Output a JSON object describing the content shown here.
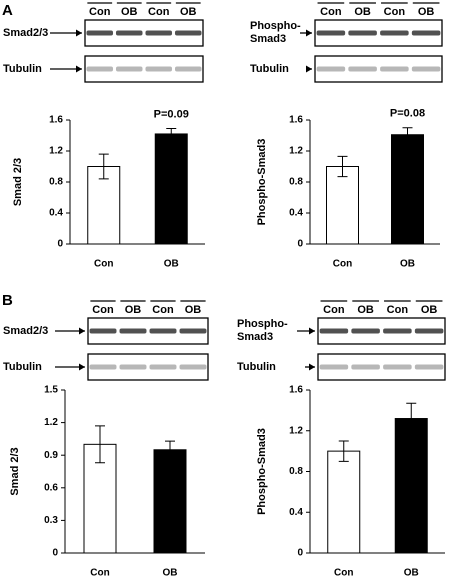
{
  "panels": [
    {
      "label": "A",
      "blots": [
        {
          "lanes": [
            "Con",
            "OB",
            "Con",
            "OB"
          ],
          "rows": [
            "Smad2/3",
            "Tubulin"
          ]
        },
        {
          "lanes": [
            "Con",
            "OB",
            "Con",
            "OB"
          ],
          "rows": [
            "Phospho-Smad3",
            "Tubulin"
          ]
        }
      ]
    },
    {
      "label": "B",
      "blots": [
        {
          "lanes": [
            "Con",
            "OB",
            "Con",
            "OB"
          ],
          "rows": [
            "Smad2/3",
            "Tubulin"
          ]
        },
        {
          "lanes": [
            "Con",
            "OB",
            "Con",
            "OB"
          ],
          "rows": [
            "Phospho-Smad3",
            "Tubulin"
          ]
        }
      ]
    }
  ],
  "chart_data": [
    {
      "type": "bar",
      "y_label": "Smad 2/3",
      "categories": [
        "Con",
        "OB"
      ],
      "values": [
        1.0,
        1.42
      ],
      "errors": [
        0.16,
        0.07
      ],
      "colors": [
        "#ffffff",
        "#000000"
      ],
      "annotation": "P=0.09",
      "ylim": [
        0,
        1.6
      ],
      "yticks": [
        0,
        0.4,
        0.8,
        1.2,
        1.6
      ]
    },
    {
      "type": "bar",
      "y_label": "Phospho-Smad3",
      "categories": [
        "Con",
        "OB"
      ],
      "values": [
        1.0,
        1.41
      ],
      "errors": [
        0.13,
        0.09
      ],
      "colors": [
        "#ffffff",
        "#000000"
      ],
      "annotation": "P=0.08",
      "ylim": [
        0,
        1.6
      ],
      "yticks": [
        0,
        0.4,
        0.8,
        1.2,
        1.6
      ]
    },
    {
      "type": "bar",
      "y_label": "Smad 2/3",
      "categories": [
        "Con",
        "OB"
      ],
      "values": [
        1.0,
        0.95
      ],
      "errors": [
        0.17,
        0.08
      ],
      "colors": [
        "#ffffff",
        "#000000"
      ],
      "ylim": [
        0,
        1.5
      ],
      "yticks": [
        0,
        0.3,
        0.6,
        0.9,
        1.2,
        1.5
      ]
    },
    {
      "type": "bar",
      "y_label": "Phospho-Smad3",
      "categories": [
        "Con",
        "OB"
      ],
      "values": [
        1.0,
        1.32
      ],
      "errors": [
        0.1,
        0.15
      ],
      "colors": [
        "#ffffff",
        "#000000"
      ],
      "ylim": [
        0,
        1.6
      ],
      "yticks": [
        0,
        0.4,
        0.8,
        1.2,
        1.6
      ]
    }
  ]
}
